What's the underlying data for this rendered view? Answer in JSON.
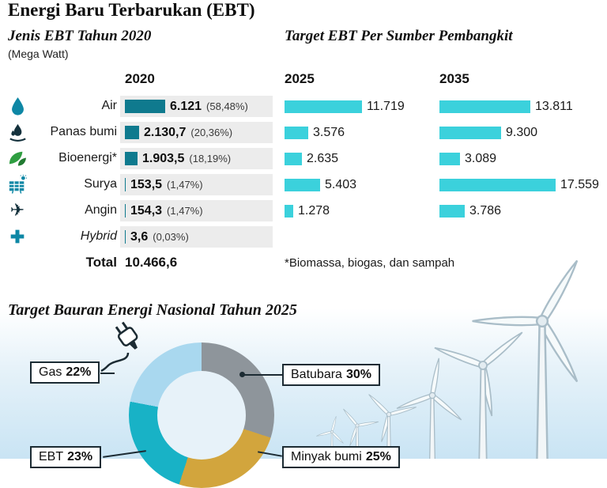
{
  "title": "Energi Baru Terbarukan (EBT)",
  "left_section": {
    "title": "Jenis EBT Tahun 2020",
    "unit": "(Mega Watt)"
  },
  "right_section": {
    "title": "Target EBT Per Sumber Pembangkit"
  },
  "columns": {
    "y2020": "2020",
    "y2025": "2025",
    "y2035": "2035"
  },
  "rows": [
    {
      "label": "Air",
      "icon": "water-drop-icon",
      "v2020": "6.121",
      "pct2020": "(58,48%)",
      "mw2020": 6121,
      "v2025": "11.719",
      "mw2025": 11719,
      "v2035": "13.811",
      "mw2035": 13811
    },
    {
      "label": "Panas bumi",
      "icon": "geothermal-flame-icon",
      "v2020": "2.130,7",
      "pct2020": "(20,36%)",
      "mw2020": 2130.7,
      "v2025": "3.576",
      "mw2025": 3576,
      "v2035": "9.300",
      "mw2035": 9300
    },
    {
      "label": "Bioenergi*",
      "icon": "leaf-icon",
      "v2020": "1.903,5",
      "pct2020": "(18,19%)",
      "mw2020": 1903.5,
      "v2025": "2.635",
      "mw2025": 2635,
      "v2035": "3.089",
      "mw2035": 3089
    },
    {
      "label": "Surya",
      "icon": "solar-panel-icon",
      "v2020": "153,5",
      "pct2020": "(1,47%)",
      "mw2020": 153.5,
      "v2025": "5.403",
      "mw2025": 5403,
      "v2035": "17.559",
      "mw2035": 17559
    },
    {
      "label": "Angin",
      "icon": "airplane-icon",
      "v2020": "154,3",
      "pct2020": "(1,47%)",
      "mw2020": 154.3,
      "v2025": "1.278",
      "mw2025": 1278,
      "v2035": "3.786",
      "mw2035": 3786
    },
    {
      "label": "Hybrid",
      "icon": "plus-icon",
      "v2020": "3,6",
      "pct2020": "(0,03%)",
      "mw2020": 3.6,
      "v2025": null,
      "mw2025": null,
      "v2035": null,
      "mw2035": null
    }
  ],
  "total": {
    "label": "Total",
    "value": "10.466,6"
  },
  "footnote": "*Biomassa, biogas, dan sampah",
  "donut": {
    "title": "Target Bauran Energi Nasional Tahun 2025",
    "segments": [
      {
        "name": "Batubara",
        "percent": 30,
        "color": "#8e959b"
      },
      {
        "name": "Minyak bumi",
        "percent": 25,
        "color": "#d2a53d"
      },
      {
        "name": "EBT",
        "percent": 23,
        "color": "#18b2c6"
      },
      {
        "name": "Gas",
        "percent": 22,
        "color": "#a9d8ef"
      }
    ],
    "labels": {
      "gas": {
        "name": "Gas",
        "pct": "22%"
      },
      "batubara": {
        "name": "Batubara",
        "pct": "30%"
      },
      "ebt": {
        "name": "EBT",
        "pct": "23%"
      },
      "minyak": {
        "name": "Minyak bumi",
        "pct": "25%"
      }
    }
  },
  "colors": {
    "bar_2020": "#0f7a8e",
    "bar_target": "#3bd1dc",
    "accent_teal": "#0e87a5",
    "dark_ink": "#1c2b33"
  },
  "icons": [
    "water-drop-icon",
    "geothermal-flame-icon",
    "leaf-icon",
    "solar-panel-icon",
    "airplane-icon",
    "plus-icon",
    "power-plug-icon",
    "wind-turbines-illustration"
  ],
  "chart_data": [
    {
      "type": "bar",
      "title": "Jenis EBT Tahun 2020 / Target EBT Per Sumber Pembangkit",
      "ylabel": "Mega Watt",
      "categories": [
        "Air",
        "Panas bumi",
        "Bioenergi*",
        "Surya",
        "Angin",
        "Hybrid"
      ],
      "series": [
        {
          "name": "2020",
          "values": [
            6121,
            2130.7,
            1903.5,
            153.5,
            154.3,
            3.6
          ]
        },
        {
          "name": "2025",
          "values": [
            11719,
            3576,
            2635,
            5403,
            1278,
            null
          ]
        },
        {
          "name": "2035",
          "values": [
            13811,
            9300,
            3089,
            17559,
            3786,
            null
          ]
        }
      ],
      "percent_labels_2020": [
        "58,48%",
        "20,36%",
        "18,19%",
        "1,47%",
        "1,47%",
        "0,03%"
      ],
      "total_2020": 10466.6,
      "footnote": "*Biomassa, biogas, dan sampah",
      "legend_position": "column-headers",
      "grid": false
    },
    {
      "type": "pie",
      "title": "Target Bauran Energi Nasional Tahun 2025",
      "labels": [
        "Batubara",
        "Minyak bumi",
        "EBT",
        "Gas"
      ],
      "values": [
        30,
        25,
        23,
        22
      ],
      "colors": [
        "#8e959b",
        "#d2a53d",
        "#18b2c6",
        "#a9d8ef"
      ]
    }
  ]
}
